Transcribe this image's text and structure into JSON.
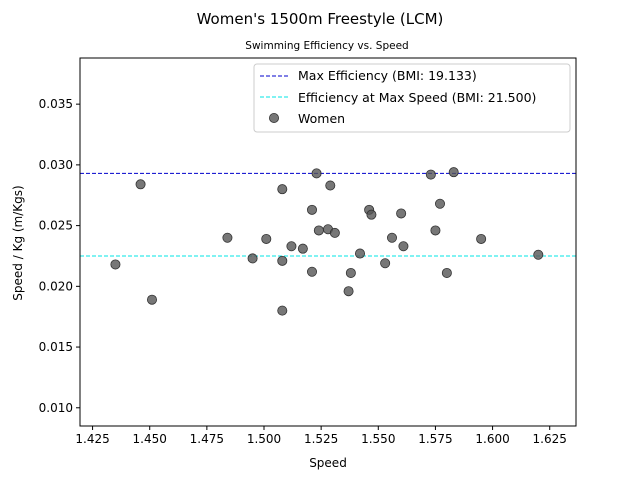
{
  "chart_data": {
    "type": "scatter",
    "title": "Women's 1500m Freestyle (LCM)",
    "subtitle": "Swimming Efficiency vs. Speed",
    "xlabel": "Speed",
    "ylabel": "Speed / Kg (m/Kgs)",
    "xlim": [
      1.4195,
      1.6365
    ],
    "ylim": [
      0.0085,
      0.0388
    ],
    "xticks": [
      1.425,
      1.45,
      1.475,
      1.5,
      1.525,
      1.55,
      1.575,
      1.6,
      1.625
    ],
    "xtick_labels": [
      "1.425",
      "1.450",
      "1.475",
      "1.500",
      "1.525",
      "1.550",
      "1.575",
      "1.600",
      "1.625"
    ],
    "yticks": [
      0.01,
      0.015,
      0.02,
      0.025,
      0.03,
      0.035
    ],
    "ytick_labels": [
      "0.010",
      "0.015",
      "0.020",
      "0.025",
      "0.030",
      "0.035"
    ],
    "grid": false,
    "legend_position": "top-right",
    "reference_lines": [
      {
        "label": "Max Efficiency (BMI: 19.133)",
        "y": 0.0293,
        "color": "#0000cc",
        "style": "dashed"
      },
      {
        "label": "Efficiency at Max Speed (BMI: 21.500)",
        "y": 0.0225,
        "color": "#00e5e5",
        "style": "dashed"
      }
    ],
    "series": [
      {
        "name": "Women",
        "color": "#555555",
        "points": [
          {
            "x": 1.435,
            "y": 0.0218
          },
          {
            "x": 1.446,
            "y": 0.0284
          },
          {
            "x": 1.451,
            "y": 0.0189
          },
          {
            "x": 1.484,
            "y": 0.024
          },
          {
            "x": 1.495,
            "y": 0.0223
          },
          {
            "x": 1.501,
            "y": 0.0239
          },
          {
            "x": 1.508,
            "y": 0.0221
          },
          {
            "x": 1.508,
            "y": 0.028
          },
          {
            "x": 1.508,
            "y": 0.018
          },
          {
            "x": 1.512,
            "y": 0.0233
          },
          {
            "x": 1.517,
            "y": 0.0231
          },
          {
            "x": 1.521,
            "y": 0.0263
          },
          {
            "x": 1.521,
            "y": 0.0212
          },
          {
            "x": 1.523,
            "y": 0.0293
          },
          {
            "x": 1.524,
            "y": 0.0246
          },
          {
            "x": 1.528,
            "y": 0.0247
          },
          {
            "x": 1.529,
            "y": 0.0283
          },
          {
            "x": 1.531,
            "y": 0.0244
          },
          {
            "x": 1.537,
            "y": 0.0196
          },
          {
            "x": 1.538,
            "y": 0.0211
          },
          {
            "x": 1.542,
            "y": 0.0227
          },
          {
            "x": 1.546,
            "y": 0.0263
          },
          {
            "x": 1.547,
            "y": 0.0259
          },
          {
            "x": 1.553,
            "y": 0.0219
          },
          {
            "x": 1.556,
            "y": 0.024
          },
          {
            "x": 1.56,
            "y": 0.026
          },
          {
            "x": 1.561,
            "y": 0.0233
          },
          {
            "x": 1.573,
            "y": 0.0292
          },
          {
            "x": 1.575,
            "y": 0.0246
          },
          {
            "x": 1.577,
            "y": 0.0268
          },
          {
            "x": 1.58,
            "y": 0.0211
          },
          {
            "x": 1.583,
            "y": 0.0294
          },
          {
            "x": 1.595,
            "y": 0.0239
          },
          {
            "x": 1.62,
            "y": 0.0226
          }
        ]
      }
    ]
  }
}
